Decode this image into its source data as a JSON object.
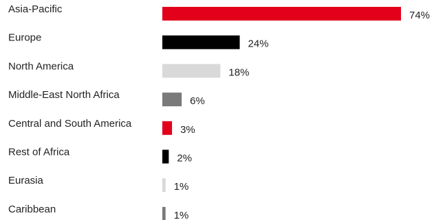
{
  "chart_data": {
    "type": "bar",
    "orientation": "horizontal",
    "categories": [
      "Asia-Pacific",
      "Europe",
      "North America",
      "Middle-East North Africa",
      "Central and South America",
      "Rest of Africa",
      "Eurasia",
      "Caribbean"
    ],
    "values": [
      74,
      24,
      18,
      6,
      3,
      2,
      1,
      1
    ],
    "value_labels": [
      "74%",
      "24%",
      "18%",
      "6%",
      "3%",
      "2%",
      "1%",
      "1%"
    ],
    "colors": [
      "#e2001a",
      "#000000",
      "#d9d9d9",
      "#7a7a7a",
      "#e2001a",
      "#000000",
      "#d9d9d9",
      "#7a7a7a"
    ],
    "unit": "%",
    "xlim": [
      0,
      74
    ],
    "grid": false,
    "legend": "none"
  }
}
